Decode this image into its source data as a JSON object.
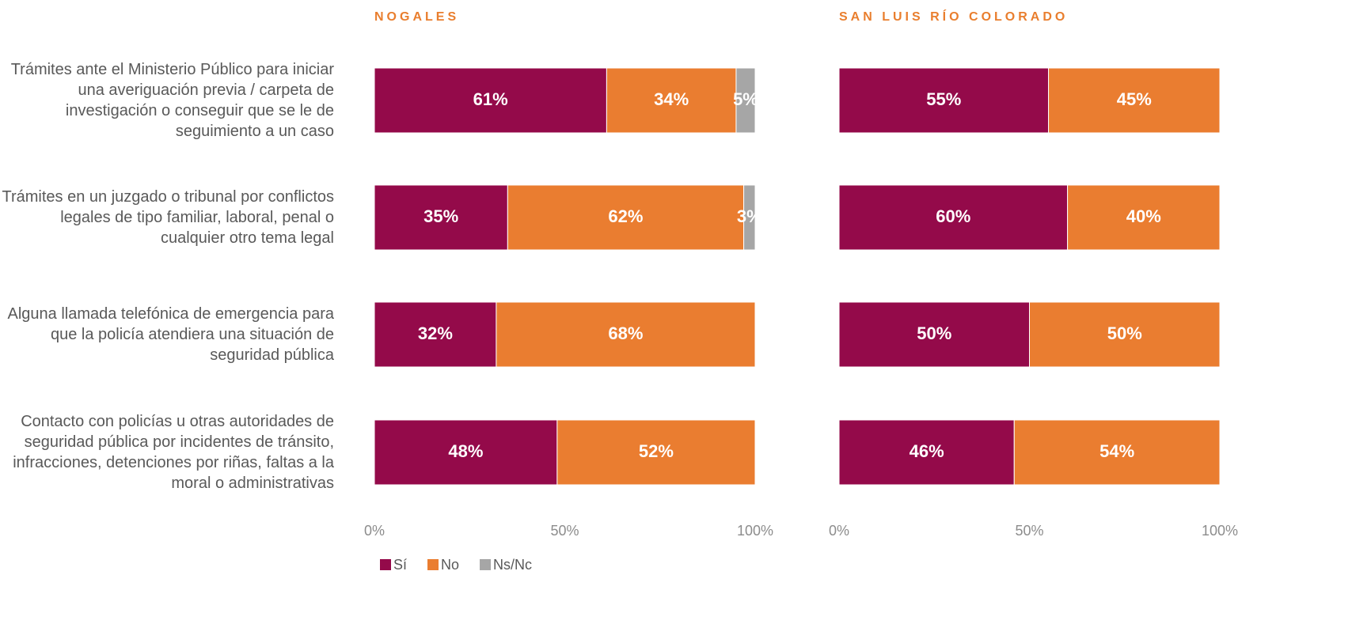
{
  "chart_data": [
    {
      "type": "stacked-bar",
      "title": "NOGALES",
      "categories": [
        "Trámites ante el Ministerio Público para iniciar una averiguación previa / carpeta de investigación o conseguir que se le de seguimiento a un caso",
        "Trámites en un juzgado o tribunal por conflictos legales de tipo familiar, laboral, penal o cualquier otro tema legal",
        "Alguna llamada telefónica de emergencia para que la policía atendiera una situación de seguridad pública",
        "Contacto con policías u otras autoridades de seguridad pública por incidentes de tránsito, infracciones, detenciones por riñas, faltas a la moral o administrativas"
      ],
      "series": [
        {
          "name": "Sí",
          "color": "#940a4a",
          "values": [
            61,
            35,
            32,
            48
          ],
          "value_labels": [
            "61%",
            "35%",
            "32%",
            "48%"
          ]
        },
        {
          "name": "No",
          "color": "#ea7d30",
          "values": [
            34,
            62,
            68,
            52
          ],
          "value_labels": [
            "34%",
            "62%",
            "68%",
            "52%"
          ]
        },
        {
          "name": "Ns/Nc",
          "color": "#a6a6a6",
          "values": [
            5,
            3,
            null,
            null
          ],
          "value_labels": [
            "5%",
            "3%",
            null,
            null
          ]
        }
      ],
      "xlim": [
        0,
        100
      ],
      "xticks": [
        {
          "value": 0,
          "label": "0%"
        },
        {
          "value": 50,
          "label": "50%"
        },
        {
          "value": 100,
          "label": "100%"
        }
      ],
      "legend": "bottom-left"
    },
    {
      "type": "stacked-bar",
      "title": "SAN LUIS RÍO COLORADO",
      "series": [
        {
          "color": "#940a4a",
          "values": [
            55,
            60,
            50,
            46
          ],
          "value_labels": [
            "55%",
            "60%",
            "50%",
            "46%"
          ]
        },
        {
          "color": "#ea7d30",
          "values": [
            45,
            40,
            50,
            54
          ],
          "value_labels": [
            "45%",
            "40%",
            "50%",
            "54%"
          ]
        }
      ],
      "xlim": [
        0,
        100
      ],
      "xticks": [
        {
          "value": 0,
          "label": "0%"
        },
        {
          "value": 50,
          "label": "50%"
        },
        {
          "value": 100,
          "label": "100%"
        }
      ]
    }
  ]
}
